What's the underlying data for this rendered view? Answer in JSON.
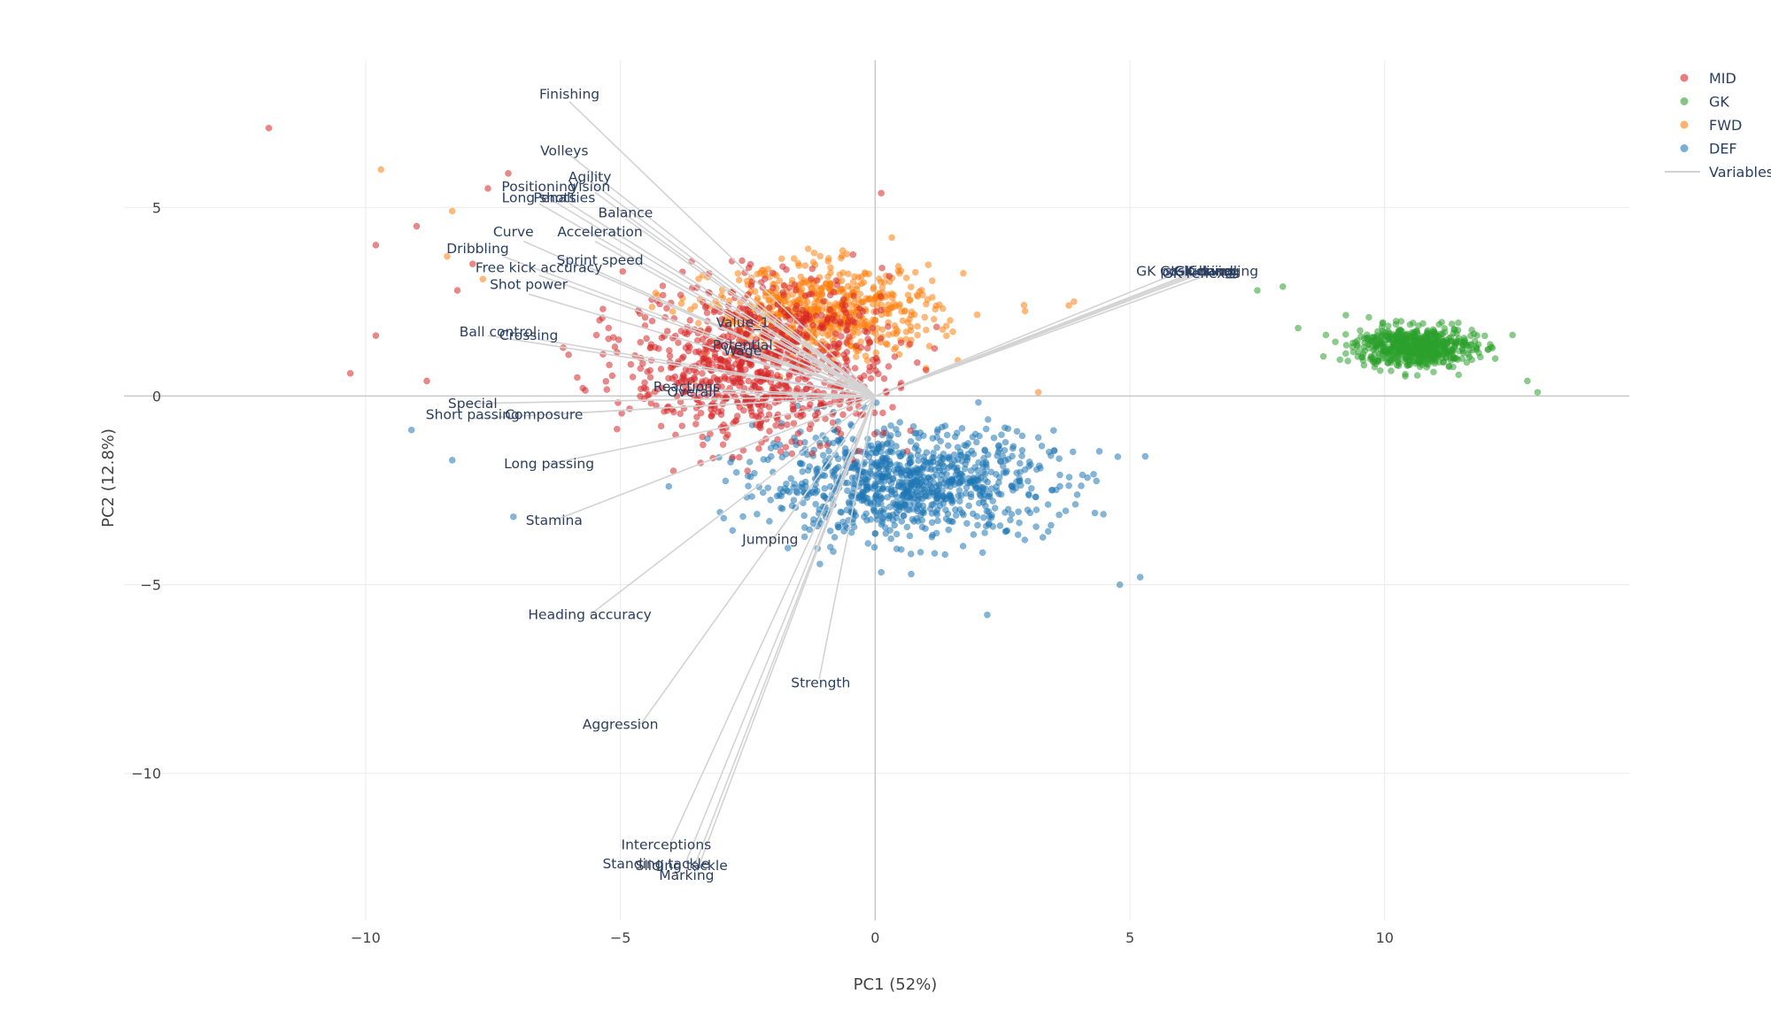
{
  "chart_data": {
    "type": "scatter",
    "subtype": "pca-biplot",
    "xlabel": "PC1 (52%)",
    "ylabel": "PC2 (12.8%)",
    "xlim": [
      -13.7,
      14.8
    ],
    "ylim": [
      -13.9,
      8.9
    ],
    "xticks": [
      -10,
      -5,
      0,
      5,
      10
    ],
    "yticks": [
      -10,
      -5,
      0,
      5
    ],
    "tick_labels": {
      "x": [
        "−10",
        "−5",
        "0",
        "5",
        "10"
      ],
      "y": [
        "−10",
        "−5",
        "0",
        "5"
      ]
    },
    "grid": true,
    "legend_position": "top-right",
    "series": [
      {
        "name": "MID",
        "color": "#d62728",
        "center": [
          -2.3,
          0.9
        ],
        "spread": [
          2.3,
          1.9
        ],
        "count": 900,
        "extra_points": [
          [
            -11.9,
            7.1
          ],
          [
            -10.3,
            0.6
          ],
          [
            -9.8,
            1.6
          ],
          [
            -9.8,
            4.0
          ],
          [
            -9.0,
            4.5
          ],
          [
            -8.8,
            0.4
          ],
          [
            -8.2,
            2.8
          ],
          [
            -7.9,
            3.5
          ],
          [
            -7.6,
            5.5
          ],
          [
            -7.2,
            5.9
          ]
        ]
      },
      {
        "name": "GK",
        "color": "#2ca02c",
        "center": [
          10.6,
          1.3
        ],
        "spread": [
          1.05,
          0.48
        ],
        "count": 600,
        "extra_points": [
          [
            7.5,
            2.8
          ],
          [
            8.0,
            2.9
          ],
          [
            8.3,
            1.8
          ],
          [
            12.8,
            0.4
          ],
          [
            13.0,
            0.1
          ]
        ]
      },
      {
        "name": "FWD",
        "color": "#ff7f0e",
        "center": [
          -1.0,
          2.2
        ],
        "spread": [
          2.0,
          1.1
        ],
        "count": 650,
        "extra_points": [
          [
            -9.7,
            6.0
          ],
          [
            -8.3,
            4.9
          ],
          [
            -8.4,
            3.7
          ],
          [
            -7.7,
            3.1
          ],
          [
            3.2,
            0.1
          ],
          [
            3.8,
            2.4
          ],
          [
            3.9,
            2.5
          ]
        ]
      },
      {
        "name": "DEF",
        "color": "#1f77b4",
        "center": [
          0.6,
          -2.3
        ],
        "spread": [
          2.6,
          1.3
        ],
        "count": 950,
        "extra_points": [
          [
            -9.1,
            -0.9
          ],
          [
            -8.3,
            -1.7
          ],
          [
            -7.1,
            -3.2
          ],
          [
            5.3,
            -1.6
          ],
          [
            4.8,
            -5.0
          ],
          [
            5.2,
            -4.8
          ],
          [
            2.2,
            -5.8
          ]
        ]
      },
      {
        "name": "Variables",
        "color": "#d3d3d3",
        "kind": "lines"
      }
    ],
    "variables": [
      {
        "label": "Finishing",
        "x": -6.0,
        "y": 7.8
      },
      {
        "label": "Volleys",
        "x": -6.1,
        "y": 6.5
      },
      {
        "label": "Agility",
        "x": -5.6,
        "y": 5.7
      },
      {
        "label": "Positioning",
        "x": -6.6,
        "y": 5.4
      },
      {
        "label": "Vision",
        "x": -5.5,
        "y": 5.4
      },
      {
        "label": "Long shots",
        "x": -6.6,
        "y": 5.1
      },
      {
        "label": "Penalties",
        "x": -6.0,
        "y": 5.1
      },
      {
        "label": "Balance",
        "x": -4.9,
        "y": 4.7
      },
      {
        "label": "Curve",
        "x": -6.9,
        "y": 4.1
      },
      {
        "label": "Acceleration",
        "x": -5.5,
        "y": 4.1
      },
      {
        "label": "Dribbling",
        "x": -7.3,
        "y": 3.7
      },
      {
        "label": "Sprint speed",
        "x": -5.6,
        "y": 3.4
      },
      {
        "label": "Free kick accuracy",
        "x": -6.6,
        "y": 3.2
      },
      {
        "label": "Shot power",
        "x": -6.8,
        "y": 2.7
      },
      {
        "label": "Ball control",
        "x": -7.6,
        "y": 1.6
      },
      {
        "label": "Crossing",
        "x": -6.6,
        "y": 1.5
      },
      {
        "label": "Value_1",
        "x": -2.6,
        "y": 1.8
      },
      {
        "label": "Potential",
        "x": -2.6,
        "y": 1.2
      },
      {
        "label": "Wage",
        "x": -2.6,
        "y": 1.0
      },
      {
        "label": "Reactions",
        "x": -3.7,
        "y": 0.2
      },
      {
        "label": "Overall",
        "x": -3.5,
        "y": 0.1
      },
      {
        "label": "Special",
        "x": -8.0,
        "y": -0.2
      },
      {
        "label": "Short passing",
        "x": -7.9,
        "y": -0.6
      },
      {
        "label": "Composure",
        "x": -6.5,
        "y": -0.5
      },
      {
        "label": "Long passing",
        "x": -6.4,
        "y": -1.8
      },
      {
        "label": "Stamina",
        "x": -6.3,
        "y": -3.3
      },
      {
        "label": "Jumping",
        "x": -2.0,
        "y": -3.8
      },
      {
        "label": "Heading accuracy",
        "x": -5.6,
        "y": -5.8
      },
      {
        "label": "Strength",
        "x": -1.1,
        "y": -7.5
      },
      {
        "label": "Aggression",
        "x": -4.6,
        "y": -8.7
      },
      {
        "label": "Interceptions",
        "x": -4.0,
        "y": -11.8
      },
      {
        "label": "Standing tackle",
        "x": -3.7,
        "y": -12.3
      },
      {
        "label": "Sliding tackle",
        "x": -3.5,
        "y": -12.3
      },
      {
        "label": "Marking",
        "x": -3.5,
        "y": -12.6
      },
      {
        "label": "GK diving",
        "x": 6.5,
        "y": 3.3
      },
      {
        "label": "GK handling",
        "x": 6.7,
        "y": 3.3
      },
      {
        "label": "GK kicking",
        "x": 6.3,
        "y": 3.3
      },
      {
        "label": "GK positioning",
        "x": 6.0,
        "y": 3.3
      },
      {
        "label": "GK reflexes",
        "x": 6.4,
        "y": 3.3
      }
    ],
    "variable_labels_drawn": [
      {
        "text": "Finishing",
        "x": -6.0,
        "y": 8.0
      },
      {
        "text": "Volleys",
        "x": -6.1,
        "y": 6.5
      },
      {
        "text": "Agility",
        "x": -5.6,
        "y": 5.8
      },
      {
        "text": "Positioning",
        "x": -6.6,
        "y": 5.55
      },
      {
        "text": "Vision",
        "x": -5.6,
        "y": 5.55
      },
      {
        "text": "Long shots",
        "x": -6.6,
        "y": 5.25
      },
      {
        "text": "Penalties",
        "x": -6.1,
        "y": 5.25
      },
      {
        "text": "Balance",
        "x": -4.9,
        "y": 4.85
      },
      {
        "text": "Curve",
        "x": -7.1,
        "y": 4.35
      },
      {
        "text": "Acceleration",
        "x": -5.4,
        "y": 4.35
      },
      {
        "text": "Dribbling",
        "x": -7.8,
        "y": 3.9
      },
      {
        "text": "Sprint speed",
        "x": -5.4,
        "y": 3.6
      },
      {
        "text": "Free kick accuracy",
        "x": -6.6,
        "y": 3.4
      },
      {
        "text": "Shot power",
        "x": -6.8,
        "y": 2.95
      },
      {
        "text": "Ball control",
        "x": -7.4,
        "y": 1.7
      },
      {
        "text": "Crossing",
        "x": -6.8,
        "y": 1.6
      },
      {
        "text": "Value_1",
        "x": -2.6,
        "y": 1.95
      },
      {
        "text": "Potential",
        "x": -2.6,
        "y": 1.35
      },
      {
        "text": "Wage",
        "x": -2.6,
        "y": 1.2
      },
      {
        "text": "Reactions",
        "x": -3.7,
        "y": 0.25
      },
      {
        "text": "Overall",
        "x": -3.6,
        "y": 0.1
      },
      {
        "text": "Special",
        "x": -7.9,
        "y": -0.2
      },
      {
        "text": "Short passing",
        "x": -7.9,
        "y": -0.5
      },
      {
        "text": "Composure",
        "x": -6.5,
        "y": -0.5
      },
      {
        "text": "Long passing",
        "x": -6.4,
        "y": -1.8
      },
      {
        "text": "Stamina",
        "x": -6.3,
        "y": -3.3
      },
      {
        "text": "Jumping",
        "x": -2.06,
        "y": -3.8
      },
      {
        "text": "Heading accuracy",
        "x": -5.6,
        "y": -5.8
      },
      {
        "text": "Strength",
        "x": -1.07,
        "y": -7.6
      },
      {
        "text": "Aggression",
        "x": -5.0,
        "y": -8.7
      },
      {
        "text": "Interceptions",
        "x": -4.1,
        "y": -11.9
      },
      {
        "text": "Standing tackle",
        "x": -4.3,
        "y": -12.4
      },
      {
        "text": "Sliding tackle",
        "x": -3.8,
        "y": -12.45
      },
      {
        "text": "Marking",
        "x": -3.7,
        "y": -12.7
      },
      {
        "text": "GK diving",
        "x": 6.5,
        "y": 3.3
      },
      {
        "text": "GK handling",
        "x": 6.7,
        "y": 3.3
      },
      {
        "text": "GK kicking",
        "x": 6.3,
        "y": 3.3
      },
      {
        "text": "GK positioning",
        "x": 6.1,
        "y": 3.3
      },
      {
        "text": "GK reflexes",
        "x": 6.4,
        "y": 3.25
      }
    ]
  }
}
